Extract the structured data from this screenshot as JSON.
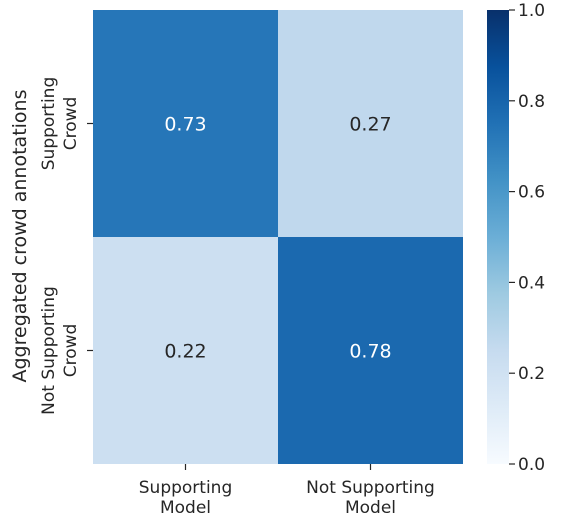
{
  "chart_data": {
    "type": "heatmap",
    "x_categories": [
      [
        "Supporting",
        "Model"
      ],
      [
        "Not Supporting",
        "Model"
      ]
    ],
    "y_categories": [
      [
        "Supporting",
        "Crowd"
      ],
      [
        "Not Supporting",
        "Crowd"
      ]
    ],
    "values": [
      [
        0.73,
        0.27
      ],
      [
        0.22,
        0.78
      ]
    ],
    "value_labels": [
      [
        "0.73",
        "0.27"
      ],
      [
        "0.22",
        "0.78"
      ]
    ],
    "ylabel": "Aggregated crowd annotations",
    "xlabel": "",
    "title": "",
    "colormap": "Blues",
    "vmin": 0.0,
    "vmax": 1.0,
    "colorbar_ticks": [
      "0.0",
      "0.2",
      "0.4",
      "0.6",
      "0.8",
      "1.0"
    ],
    "colors": {
      "low": "#f7fbff",
      "high": "#08306b",
      "text_dark": "#262626",
      "text_light": "#ffffff"
    }
  }
}
